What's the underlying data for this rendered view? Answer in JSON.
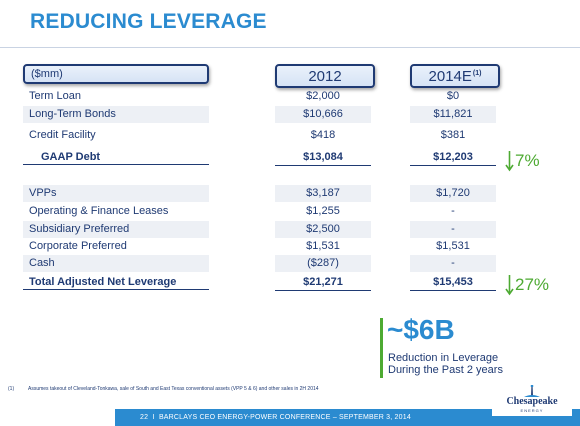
{
  "title": "REDUCING LEVERAGE",
  "header": {
    "label": "($mm)",
    "col1": "2012",
    "col2": "2014E",
    "col2_superscript": "(1)"
  },
  "rows": [
    {
      "label": "Term Loan",
      "v2012": "$2,000",
      "v2014": "$0"
    },
    {
      "label": "Long-Term Bonds",
      "v2012": "$10,666",
      "v2014": "$11,821"
    },
    {
      "label": "Credit Facility",
      "v2012": "$418",
      "v2014": "$381"
    },
    {
      "label": "GAAP Debt",
      "v2012": "$13,084",
      "v2014": "$12,203"
    },
    {
      "label": "VPPs",
      "v2012": "$3,187",
      "v2014": "$1,720"
    },
    {
      "label": "Operating & Finance Leases",
      "v2012": "$1,255",
      "v2014": "-"
    },
    {
      "label": "Subsidiary Preferred",
      "v2012": "$2,500",
      "v2014": "-"
    },
    {
      "label": "Corporate Preferred",
      "v2012": "$1,531",
      "v2014": "$1,531"
    },
    {
      "label": "Cash",
      "v2012": "($287)",
      "v2014": "-"
    },
    {
      "label": "Total Adjusted Net Leverage",
      "v2012": "$21,271",
      "v2014": "$15,453"
    }
  ],
  "reductions": {
    "gaap_debt": "7%",
    "total_leverage": "27%"
  },
  "callout": {
    "amount": "~$6B",
    "line1": "Reduction in Leverage",
    "line2": "During the Past 2 years"
  },
  "footnote": {
    "number": "(1)",
    "text": "Assumes takeout of Cleveland-Tonkawa, sale of South and East Texas conventional assets (VPP 5 & 6) and other sales in 2H 2014"
  },
  "footer": {
    "page": "22",
    "separator": "I",
    "text": "BARCLAYS CEO ENERGY-POWER CONFERENCE – SEPTEMBER 3, 2014"
  },
  "logo": {
    "name": "Chesapeake",
    "sub": "ENERGY"
  },
  "colors": {
    "title": "#2b8bd0",
    "navy": "#1f3a73",
    "green": "#4daa32",
    "shade": "#edf0f5"
  }
}
